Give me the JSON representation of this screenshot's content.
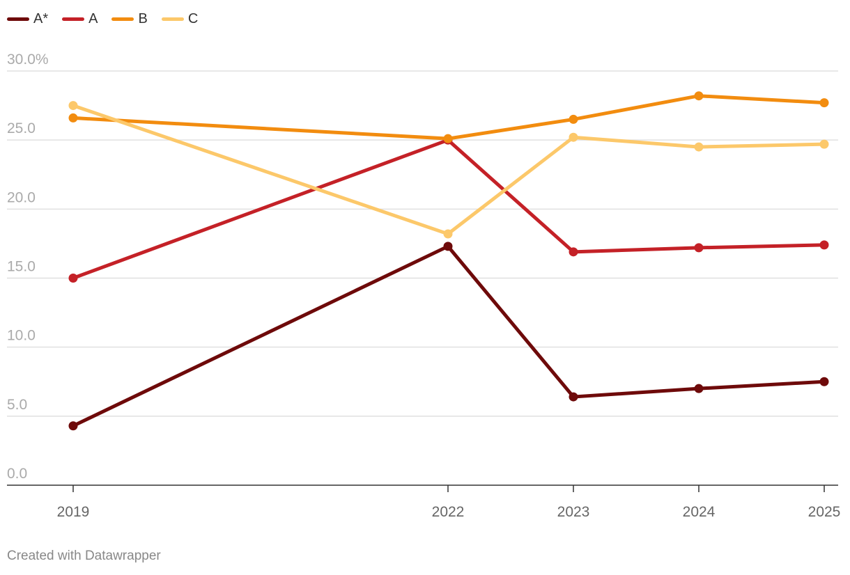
{
  "chart_data": {
    "type": "line",
    "x": [
      "2019",
      "2022",
      "2023",
      "2024",
      "2025"
    ],
    "y_ticks": [
      "0.0",
      "5.0",
      "10.0",
      "15.0",
      "20.0",
      "25.0",
      "30.0%"
    ],
    "ylim": [
      0,
      30
    ],
    "grid": true,
    "legend_placement": "top-left",
    "series": [
      {
        "name": "A*",
        "color": "#6e0a0a",
        "values": [
          4.3,
          17.3,
          6.4,
          7.0,
          7.5
        ]
      },
      {
        "name": "A",
        "color": "#c42127",
        "values": [
          15.0,
          25.0,
          16.9,
          17.2,
          17.4
        ]
      },
      {
        "name": "B",
        "color": "#f28c0f",
        "values": [
          26.6,
          25.1,
          26.5,
          28.2,
          27.7
        ]
      },
      {
        "name": "C",
        "color": "#fcc86a",
        "values": [
          27.5,
          18.2,
          25.2,
          24.5,
          24.7
        ]
      }
    ]
  },
  "footer": {
    "credit": "Created with Datawrapper"
  }
}
